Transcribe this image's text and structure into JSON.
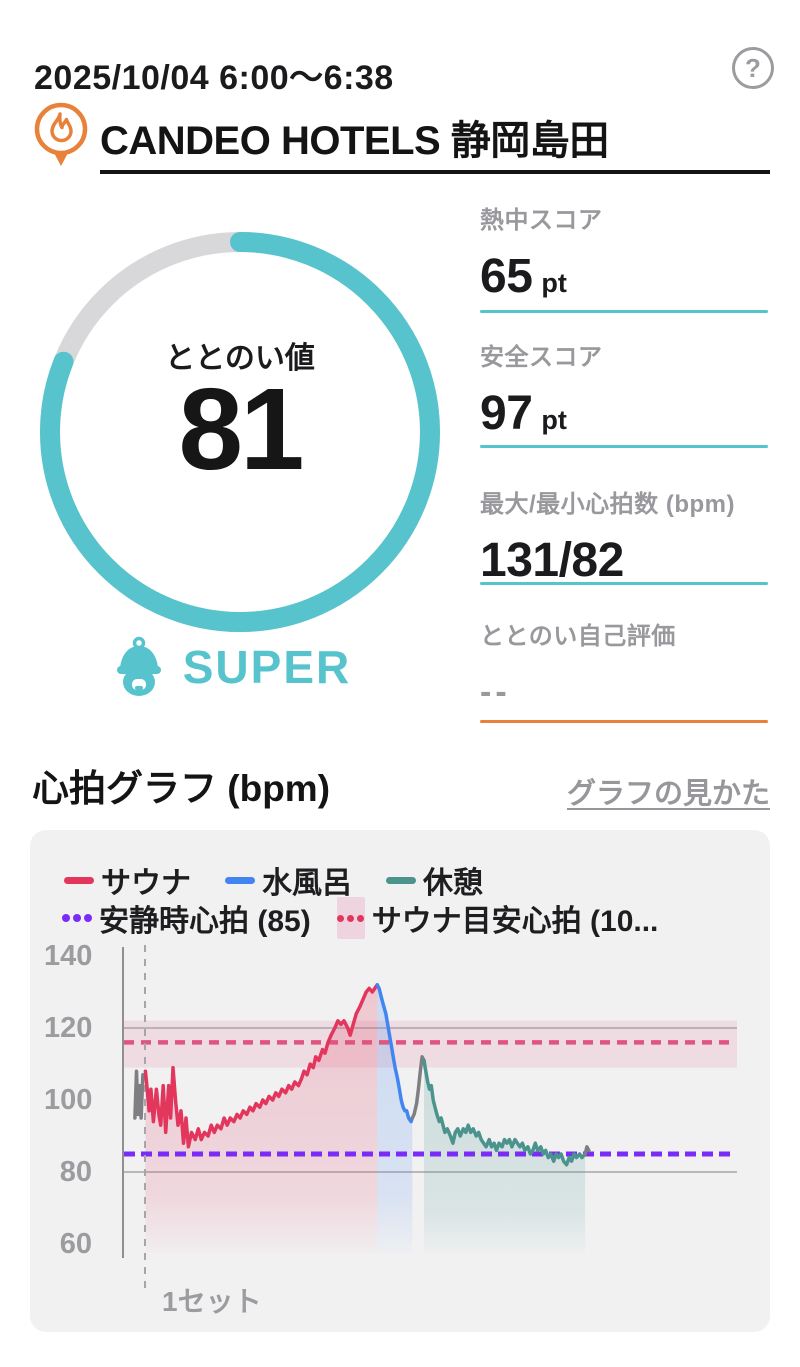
{
  "header": {
    "date_range": "2025/10/04 6:00～6:38",
    "help_label": "?"
  },
  "venue": {
    "name": "CANDEO HOTELS 静岡島田"
  },
  "gauge": {
    "label": "ととのい値",
    "value": "81",
    "percent": 81,
    "rating": "SUPER",
    "accent_color": "#57C3CC",
    "track_color": "#D8D8DA"
  },
  "stats": [
    {
      "label": "熱中スコア",
      "value": "65",
      "unit": "pt",
      "underline_color": "#57C3CC"
    },
    {
      "label": "安全スコア",
      "value": "97",
      "unit": "pt",
      "underline_color": "#57C3CC"
    },
    {
      "label": "最大/最小心拍数 (bpm)",
      "value": "131/82",
      "unit": "",
      "underline_color": "#57C3CC"
    },
    {
      "label": "ととのい自己評価",
      "value": "--",
      "unit": "",
      "underline_color": "#E8823B"
    }
  ],
  "chart_section": {
    "title": "心拍グラフ (bpm)",
    "link": "グラフの見かた"
  },
  "chart_data": {
    "type": "line",
    "title": "心拍グラフ (bpm)",
    "ylabel": "bpm",
    "ylim": [
      56,
      146
    ],
    "yticks": [
      140,
      120,
      100,
      80,
      60
    ],
    "solid_gridlines": [
      120,
      80
    ],
    "grid_color": "#A5A5AA",
    "axis_color": "#8E8E93",
    "max_bpm": 131,
    "min_bpm": 82,
    "legend": [
      {
        "label": "サウナ",
        "color": "#E2365C",
        "style": "line"
      },
      {
        "label": "水風呂",
        "color": "#4186F0",
        "style": "line"
      },
      {
        "label": "休憩",
        "color": "#4A948D",
        "style": "line"
      },
      {
        "label": "安静時心拍 (85)",
        "color": "#7A2BF5",
        "style": "dotted"
      },
      {
        "label": "サウナ目安心拍 (10...",
        "color": "#E2365C",
        "style": "band",
        "band_bg": "rgba(224,85,131,0.18)"
      }
    ],
    "reference_lines": [
      {
        "label": "サウナ目安心拍",
        "value": 116,
        "color": "#E0557F",
        "width": 4.5,
        "dash": "10 7"
      },
      {
        "label": "安静時心拍",
        "value": 85,
        "color": "#7A2BF5",
        "width": 5,
        "dash": "11 6"
      }
    ],
    "reference_band": {
      "label": "サウナ目安心拍ゾーン",
      "from": 109,
      "to": 122,
      "color": "#E0557F",
      "opacity": 0.13
    },
    "set_marker": {
      "label": "1セット",
      "x_percent": 3.74
    },
    "segments": [
      {
        "name": "start",
        "color": "#7F7F83",
        "fill": false,
        "points": [
          [
            2.1,
            95
          ],
          [
            2.35,
            108
          ],
          [
            2.6,
            96
          ],
          [
            2.85,
            104
          ],
          [
            3.1,
            95
          ],
          [
            3.4,
            107
          ]
        ]
      },
      {
        "name": "sauna",
        "color": "#E2365C",
        "fill": true,
        "points": [
          [
            3.8,
            108
          ],
          [
            4.1,
            103
          ],
          [
            4.4,
            97
          ],
          [
            4.7,
            103
          ],
          [
            5.1,
            94
          ],
          [
            5.6,
            103
          ],
          [
            6.0,
            96
          ],
          [
            6.3,
            93
          ],
          [
            6.7,
            104
          ],
          [
            7.1,
            91
          ],
          [
            7.6,
            104
          ],
          [
            7.9,
            95
          ],
          [
            8.3,
            109
          ],
          [
            8.7,
            100
          ],
          [
            9.1,
            93
          ],
          [
            9.6,
            97
          ],
          [
            10.0,
            88
          ],
          [
            10.4,
            95
          ],
          [
            10.8,
            87
          ],
          [
            11.3,
            91
          ],
          [
            11.9,
            89
          ],
          [
            12.4,
            92
          ],
          [
            12.9,
            89
          ],
          [
            13.4,
            91
          ],
          [
            14.0,
            90
          ],
          [
            14.5,
            93
          ],
          [
            15.0,
            91
          ],
          [
            15.5,
            93
          ],
          [
            16.1,
            92
          ],
          [
            16.6,
            95
          ],
          [
            17.1,
            93
          ],
          [
            17.6,
            95
          ],
          [
            18.2,
            94
          ],
          [
            18.7,
            96
          ],
          [
            19.2,
            95
          ],
          [
            19.7,
            97
          ],
          [
            20.3,
            96
          ],
          [
            20.8,
            98
          ],
          [
            21.3,
            97
          ],
          [
            21.8,
            99
          ],
          [
            22.4,
            98
          ],
          [
            22.9,
            100
          ],
          [
            23.4,
            99
          ],
          [
            23.9,
            101
          ],
          [
            24.5,
            100
          ],
          [
            25.0,
            102
          ],
          [
            25.5,
            101
          ],
          [
            26.0,
            103
          ],
          [
            26.6,
            102
          ],
          [
            27.1,
            104
          ],
          [
            27.6,
            103
          ],
          [
            28.1,
            105
          ],
          [
            28.7,
            104
          ],
          [
            29.2,
            106
          ],
          [
            29.6,
            108
          ],
          [
            30.1,
            107
          ],
          [
            30.6,
            110
          ],
          [
            31.1,
            109
          ],
          [
            31.5,
            112
          ],
          [
            32.0,
            111
          ],
          [
            32.6,
            114
          ],
          [
            33.0,
            113
          ],
          [
            33.5,
            116
          ],
          [
            34.0,
            118
          ],
          [
            34.6,
            120
          ],
          [
            35.1,
            122
          ],
          [
            35.6,
            121
          ],
          [
            36.1,
            122
          ],
          [
            36.7,
            120
          ],
          [
            37.1,
            118
          ],
          [
            37.6,
            121
          ],
          [
            38.1,
            124
          ],
          [
            38.7,
            126
          ],
          [
            39.2,
            128
          ],
          [
            39.7,
            130
          ],
          [
            40.2,
            131
          ],
          [
            40.7,
            130
          ],
          [
            41.1,
            131
          ],
          [
            41.5,
            132
          ]
        ]
      },
      {
        "name": "cold_bath",
        "color": "#4186F0",
        "fill": true,
        "points": [
          [
            41.5,
            132
          ],
          [
            41.8,
            131
          ],
          [
            42.1,
            129
          ],
          [
            42.4,
            127
          ],
          [
            42.9,
            124
          ],
          [
            43.2,
            121
          ],
          [
            43.5,
            118
          ],
          [
            43.8,
            115
          ],
          [
            44.1,
            112
          ],
          [
            44.4,
            109
          ],
          [
            44.8,
            106
          ],
          [
            45.1,
            103
          ],
          [
            45.4,
            100
          ],
          [
            45.7,
            98
          ],
          [
            46.0,
            97
          ],
          [
            46.3,
            97
          ],
          [
            46.6,
            95
          ],
          [
            47.0,
            94
          ],
          [
            47.2,
            95
          ]
        ]
      },
      {
        "name": "transition",
        "color": "#7F7F83",
        "fill": false,
        "points": [
          [
            47.2,
            95
          ],
          [
            47.5,
            96
          ],
          [
            47.9,
            99
          ],
          [
            48.2,
            103
          ],
          [
            48.5,
            108
          ],
          [
            48.8,
            112
          ],
          [
            49.1,
            111
          ]
        ]
      },
      {
        "name": "rest",
        "color": "#4A948D",
        "fill": true,
        "points": [
          [
            49.1,
            111
          ],
          [
            49.4,
            108
          ],
          [
            49.7,
            105
          ],
          [
            50.0,
            103
          ],
          [
            50.3,
            104
          ],
          [
            50.6,
            100
          ],
          [
            50.9,
            98
          ],
          [
            51.2,
            96
          ],
          [
            51.6,
            94
          ],
          [
            51.9,
            95
          ],
          [
            52.2,
            93
          ],
          [
            52.5,
            91
          ],
          [
            52.9,
            92
          ],
          [
            53.4,
            90
          ],
          [
            53.8,
            88
          ],
          [
            54.2,
            91
          ],
          [
            54.6,
            92
          ],
          [
            55.0,
            90
          ],
          [
            55.5,
            92
          ],
          [
            55.9,
            91
          ],
          [
            56.3,
            93
          ],
          [
            56.7,
            91
          ],
          [
            57.1,
            92
          ],
          [
            57.6,
            90
          ],
          [
            58.0,
            91
          ],
          [
            58.4,
            89
          ],
          [
            58.8,
            88
          ],
          [
            59.2,
            87
          ],
          [
            59.7,
            89
          ],
          [
            60.1,
            87
          ],
          [
            60.5,
            88
          ],
          [
            60.9,
            86
          ],
          [
            61.3,
            88
          ],
          [
            61.8,
            87
          ],
          [
            62.2,
            89
          ],
          [
            62.6,
            88
          ],
          [
            63.0,
            89
          ],
          [
            63.4,
            87
          ],
          [
            63.9,
            89
          ],
          [
            64.3,
            88
          ],
          [
            64.7,
            87
          ],
          [
            65.1,
            88
          ],
          [
            65.5,
            86
          ],
          [
            66.0,
            87
          ],
          [
            66.4,
            85
          ],
          [
            66.8,
            86
          ],
          [
            67.2,
            88
          ],
          [
            67.6,
            86
          ],
          [
            68.1,
            87
          ],
          [
            68.5,
            85
          ],
          [
            68.9,
            86
          ],
          [
            69.3,
            84
          ],
          [
            69.7,
            85
          ],
          [
            70.2,
            83
          ],
          [
            70.6,
            85
          ],
          [
            71.0,
            84
          ],
          [
            71.4,
            85
          ],
          [
            71.8,
            83
          ],
          [
            72.3,
            82
          ],
          [
            72.7,
            84
          ],
          [
            73.1,
            83
          ],
          [
            73.5,
            85
          ],
          [
            73.9,
            84
          ],
          [
            74.4,
            85
          ],
          [
            74.8,
            84
          ],
          [
            75.3,
            85
          ]
        ]
      },
      {
        "name": "end",
        "color": "#7F7F83",
        "fill": false,
        "points": [
          [
            75.3,
            85
          ],
          [
            75.6,
            87
          ],
          [
            75.9,
            86
          ]
        ]
      }
    ]
  }
}
